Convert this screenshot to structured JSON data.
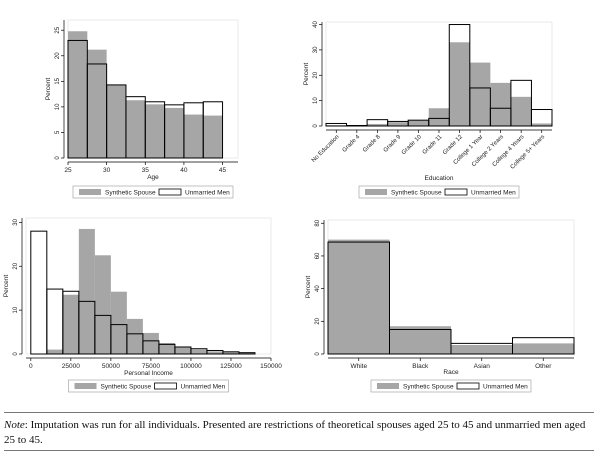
{
  "legend": {
    "synthetic_label": "Synthetic Spouse",
    "unmarried_label": "Unmarried Men",
    "synthetic_color": "#a6a6a6",
    "unmarried_color": "#ffffff"
  },
  "chart_data": [
    {
      "type": "bar",
      "xlabel": "Age",
      "ylabel": "Percent",
      "xlim": [
        25,
        47
      ],
      "ylim": [
        0,
        27
      ],
      "xticks": [
        "25",
        "30",
        "35",
        "40",
        "45"
      ],
      "yticks": [
        "0",
        "5",
        "10",
        "15",
        "20",
        "25"
      ],
      "bin_edges": [
        25,
        27.5,
        30,
        32.5,
        35,
        37.5,
        40,
        42.5,
        45
      ],
      "series": [
        {
          "name": "Synthetic Spouse",
          "values": [
            24.8,
            21.2,
            14.3,
            11.3,
            10.5,
            9.8,
            8.5,
            8.3
          ]
        },
        {
          "name": "Unmarried Men",
          "values": [
            23.0,
            18.4,
            14.3,
            12.0,
            11.0,
            10.4,
            10.8,
            11.0
          ]
        }
      ],
      "legend_position": "bottom"
    },
    {
      "type": "bar",
      "xlabel": "Education",
      "ylabel": "Percent",
      "ylim": [
        0,
        41
      ],
      "yticks": [
        "0",
        "10",
        "20",
        "30",
        "40"
      ],
      "categories": [
        "No Education",
        "Grade 4",
        "Grade 8",
        "Grade 9",
        "Grade 10",
        "Grade 11",
        "Grade 12",
        "College 1 Year",
        "College 2 Years",
        "College 4 Years",
        "College 5+ Years"
      ],
      "series": [
        {
          "name": "Synthetic Spouse",
          "values": [
            0.3,
            0.2,
            0.8,
            1.5,
            2.2,
            7.0,
            33.0,
            25.0,
            17.0,
            11.5,
            1.0
          ]
        },
        {
          "name": "Unmarried Men",
          "values": [
            1.0,
            0.2,
            2.5,
            1.8,
            2.3,
            3.0,
            40.0,
            15.0,
            7.0,
            18.0,
            6.5
          ]
        }
      ],
      "legend_position": "bottom"
    },
    {
      "type": "bar",
      "xlabel": "Personal Income",
      "ylabel": "Percent",
      "xlim": [
        -3000,
        150000
      ],
      "ylim": [
        0,
        31
      ],
      "xticks": [
        "0",
        "25000",
        "50000",
        "75000",
        "100000",
        "125000",
        "150000"
      ],
      "yticks": [
        "0",
        "10",
        "20",
        "30"
      ],
      "bin_edges": [
        0,
        10000,
        20000,
        30000,
        40000,
        50000,
        60000,
        70000,
        80000,
        90000,
        100000,
        110000,
        120000,
        130000,
        140000
      ],
      "series": [
        {
          "name": "Synthetic Spouse",
          "values": [
            0,
            1.0,
            13.5,
            28.5,
            22.5,
            14.2,
            8.0,
            4.8,
            2.5,
            1.6,
            1.0,
            0.6,
            0.4,
            0.2
          ]
        },
        {
          "name": "Unmarried Men",
          "values": [
            28.0,
            14.8,
            14.3,
            12.0,
            8.8,
            6.7,
            4.6,
            3.0,
            2.2,
            1.6,
            1.2,
            0.8,
            0.5,
            0.3
          ]
        }
      ],
      "legend_position": "bottom"
    },
    {
      "type": "bar",
      "xlabel": "Race",
      "ylabel": "Percent",
      "ylim": [
        0,
        82
      ],
      "yticks": [
        "0",
        "20",
        "40",
        "60",
        "80"
      ],
      "categories": [
        "White",
        "Black",
        "Asian",
        "Other"
      ],
      "series": [
        {
          "name": "Synthetic Spouse",
          "values": [
            70.0,
            17.0,
            5.5,
            6.5
          ]
        },
        {
          "name": "Unmarried Men",
          "values": [
            68.5,
            15.0,
            6.5,
            10.0
          ]
        }
      ],
      "legend_position": "bottom"
    }
  ],
  "note": {
    "label": "Note",
    "text": ": Imputation was run for all individuals. Presented are restrictions of theoretical spouses aged 25 to 45 and unmarried men aged 25 to 45."
  }
}
